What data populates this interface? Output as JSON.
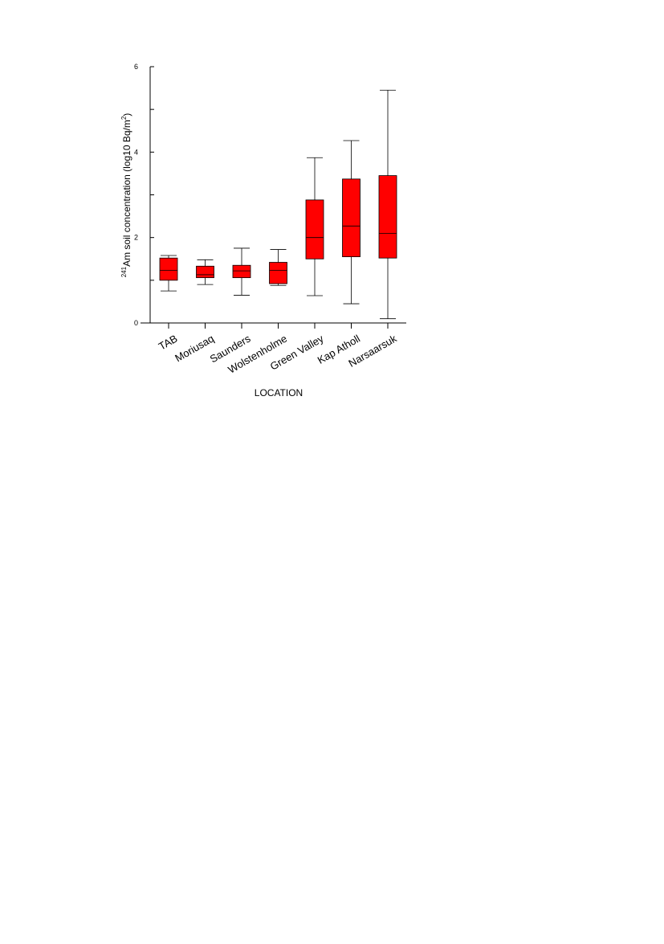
{
  "chart_data": {
    "type": "box",
    "xlabel": "LOCATION",
    "ylabel": {
      "superscript": "241",
      "text": "Am soil concentration (log10 Bq/m",
      "unit_superscript": "2",
      "suffix": ")"
    },
    "ylim": [
      0,
      6
    ],
    "yticks": [
      0,
      2,
      4,
      6
    ],
    "grid": false,
    "box_color": "#ff0000",
    "categories": [
      "TAB",
      "Moriusaq",
      "Saunders",
      "Wolstenholme",
      "Green Valley",
      "Kap Atholl",
      "Narsaarsuk"
    ],
    "series": [
      {
        "values": [
          {
            "min": 0.75,
            "q1": 1.0,
            "median": 1.23,
            "q3": 1.52,
            "max": 1.58
          },
          {
            "min": 0.9,
            "q1": 1.06,
            "median": 1.13,
            "q3": 1.33,
            "max": 1.48
          },
          {
            "min": 0.65,
            "q1": 1.06,
            "median": 1.22,
            "q3": 1.35,
            "max": 1.75
          },
          {
            "min": 0.88,
            "q1": 0.92,
            "median": 1.23,
            "q3": 1.42,
            "max": 1.72
          },
          {
            "min": 0.64,
            "q1": 1.5,
            "median": 2.0,
            "q3": 2.88,
            "max": 3.87
          },
          {
            "min": 0.45,
            "q1": 1.55,
            "median": 2.27,
            "q3": 3.37,
            "max": 4.27
          },
          {
            "min": 0.1,
            "q1": 1.52,
            "median": 2.1,
            "q3": 3.45,
            "max": 5.45
          }
        ]
      }
    ]
  }
}
